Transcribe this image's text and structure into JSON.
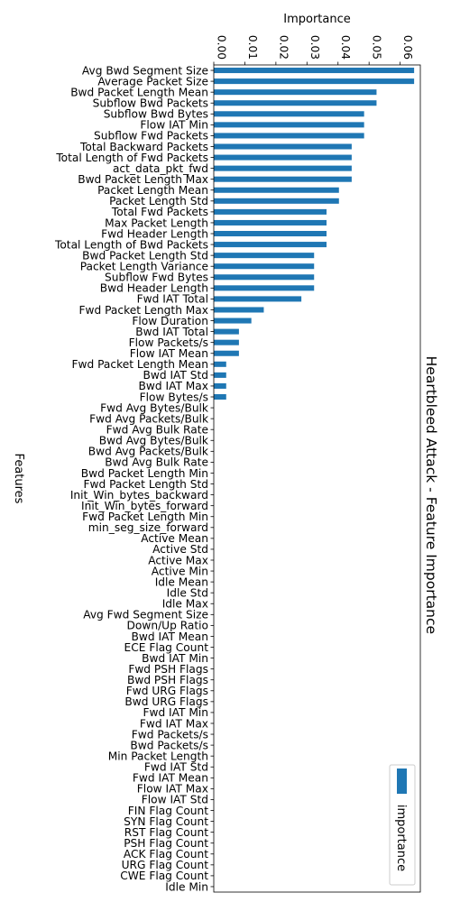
{
  "chart_data": {
    "type": "bar",
    "orientation": "horizontal",
    "title": "Heartbleed Attack - Feature Importance",
    "xlabel": "Importance",
    "ylabel": "Features",
    "xlim": [
      0,
      0.0665
    ],
    "xticks": [
      "0.00",
      "0.01",
      "0.02",
      "0.03",
      "0.04",
      "0.05",
      "0.06"
    ],
    "legend": {
      "position": "bottom-right",
      "label": "importance"
    },
    "grid": false,
    "bar_color": "#1f77b4",
    "categories": [
      "Avg Bwd Segment Size",
      "Average Packet Size",
      "Bwd Packet Length Mean",
      "Subflow Bwd Packets",
      "Subflow Bwd Bytes",
      "Flow IAT Min",
      "Subflow Fwd Packets",
      "Total Backward Packets",
      "Total Length of Fwd Packets",
      "act_data_pkt_fwd",
      "Bwd Packet Length Max",
      "Packet Length Mean",
      "Packet Length Std",
      "Total Fwd Packets",
      "Max Packet Length",
      "Fwd Header Length",
      "Total Length of Bwd Packets",
      "Bwd Packet Length Std",
      "Packet Length Variance",
      "Subflow Fwd Bytes",
      "Bwd Header Length",
      "Fwd IAT Total",
      "Fwd Packet Length Max",
      "Flow Duration",
      "Bwd IAT Total",
      "Flow Packets/s",
      "Flow IAT Mean",
      "Fwd Packet Length Mean",
      "Bwd IAT Std",
      "Bwd IAT Max",
      "Flow Bytes/s",
      "Fwd Avg Bytes/Bulk",
      "Fwd Avg Packets/Bulk",
      "Fwd Avg Bulk Rate",
      "Bwd Avg Bytes/Bulk",
      "Bwd Avg Packets/Bulk",
      "Bwd Avg Bulk Rate",
      "Bwd Packet Length Min",
      "Fwd Packet Length Std",
      "Init_Win_bytes_backward",
      "Init_Win_bytes_forward",
      "Fwd Packet Length Min",
      "min_seg_size_forward",
      "Active Mean",
      "Active Std",
      "Active Max",
      "Active Min",
      "Idle Mean",
      "Idle Std",
      "Idle Max",
      "Avg Fwd Segment Size",
      "Down/Up Ratio",
      "Bwd IAT Mean",
      "ECE Flag Count",
      "Bwd IAT Min",
      "Fwd PSH Flags",
      "Bwd PSH Flags",
      "Fwd URG Flags",
      "Bwd URG Flags",
      "Fwd IAT Min",
      "Fwd IAT Max",
      "Fwd Packets/s",
      "Bwd Packets/s",
      "Min Packet Length",
      "Fwd IAT Std",
      "Fwd IAT Mean",
      "Flow IAT Max",
      "Flow IAT Std",
      "FIN Flag Count",
      "SYN Flag Count",
      "RST Flag Count",
      "PSH Flag Count",
      "ACK Flag Count",
      "URG Flag Count",
      "CWE Flag Count",
      "Idle Min"
    ],
    "values": [
      0.0645,
      0.0645,
      0.0524,
      0.0524,
      0.0484,
      0.0484,
      0.0484,
      0.0444,
      0.0444,
      0.0444,
      0.0444,
      0.0403,
      0.0403,
      0.0363,
      0.0363,
      0.0363,
      0.0363,
      0.0323,
      0.0323,
      0.0323,
      0.0323,
      0.0282,
      0.0161,
      0.0121,
      0.0081,
      0.0081,
      0.0081,
      0.004,
      0.004,
      0.004,
      0.004,
      0,
      0,
      0,
      0,
      0,
      0,
      0,
      0,
      0,
      0,
      0,
      0,
      0,
      0,
      0,
      0,
      0,
      0,
      0,
      0,
      0,
      0,
      0,
      0,
      0,
      0,
      0,
      0,
      0,
      0,
      0,
      0,
      0,
      0,
      0,
      0,
      0,
      0,
      0,
      0,
      0,
      0,
      0,
      0,
      0
    ]
  }
}
